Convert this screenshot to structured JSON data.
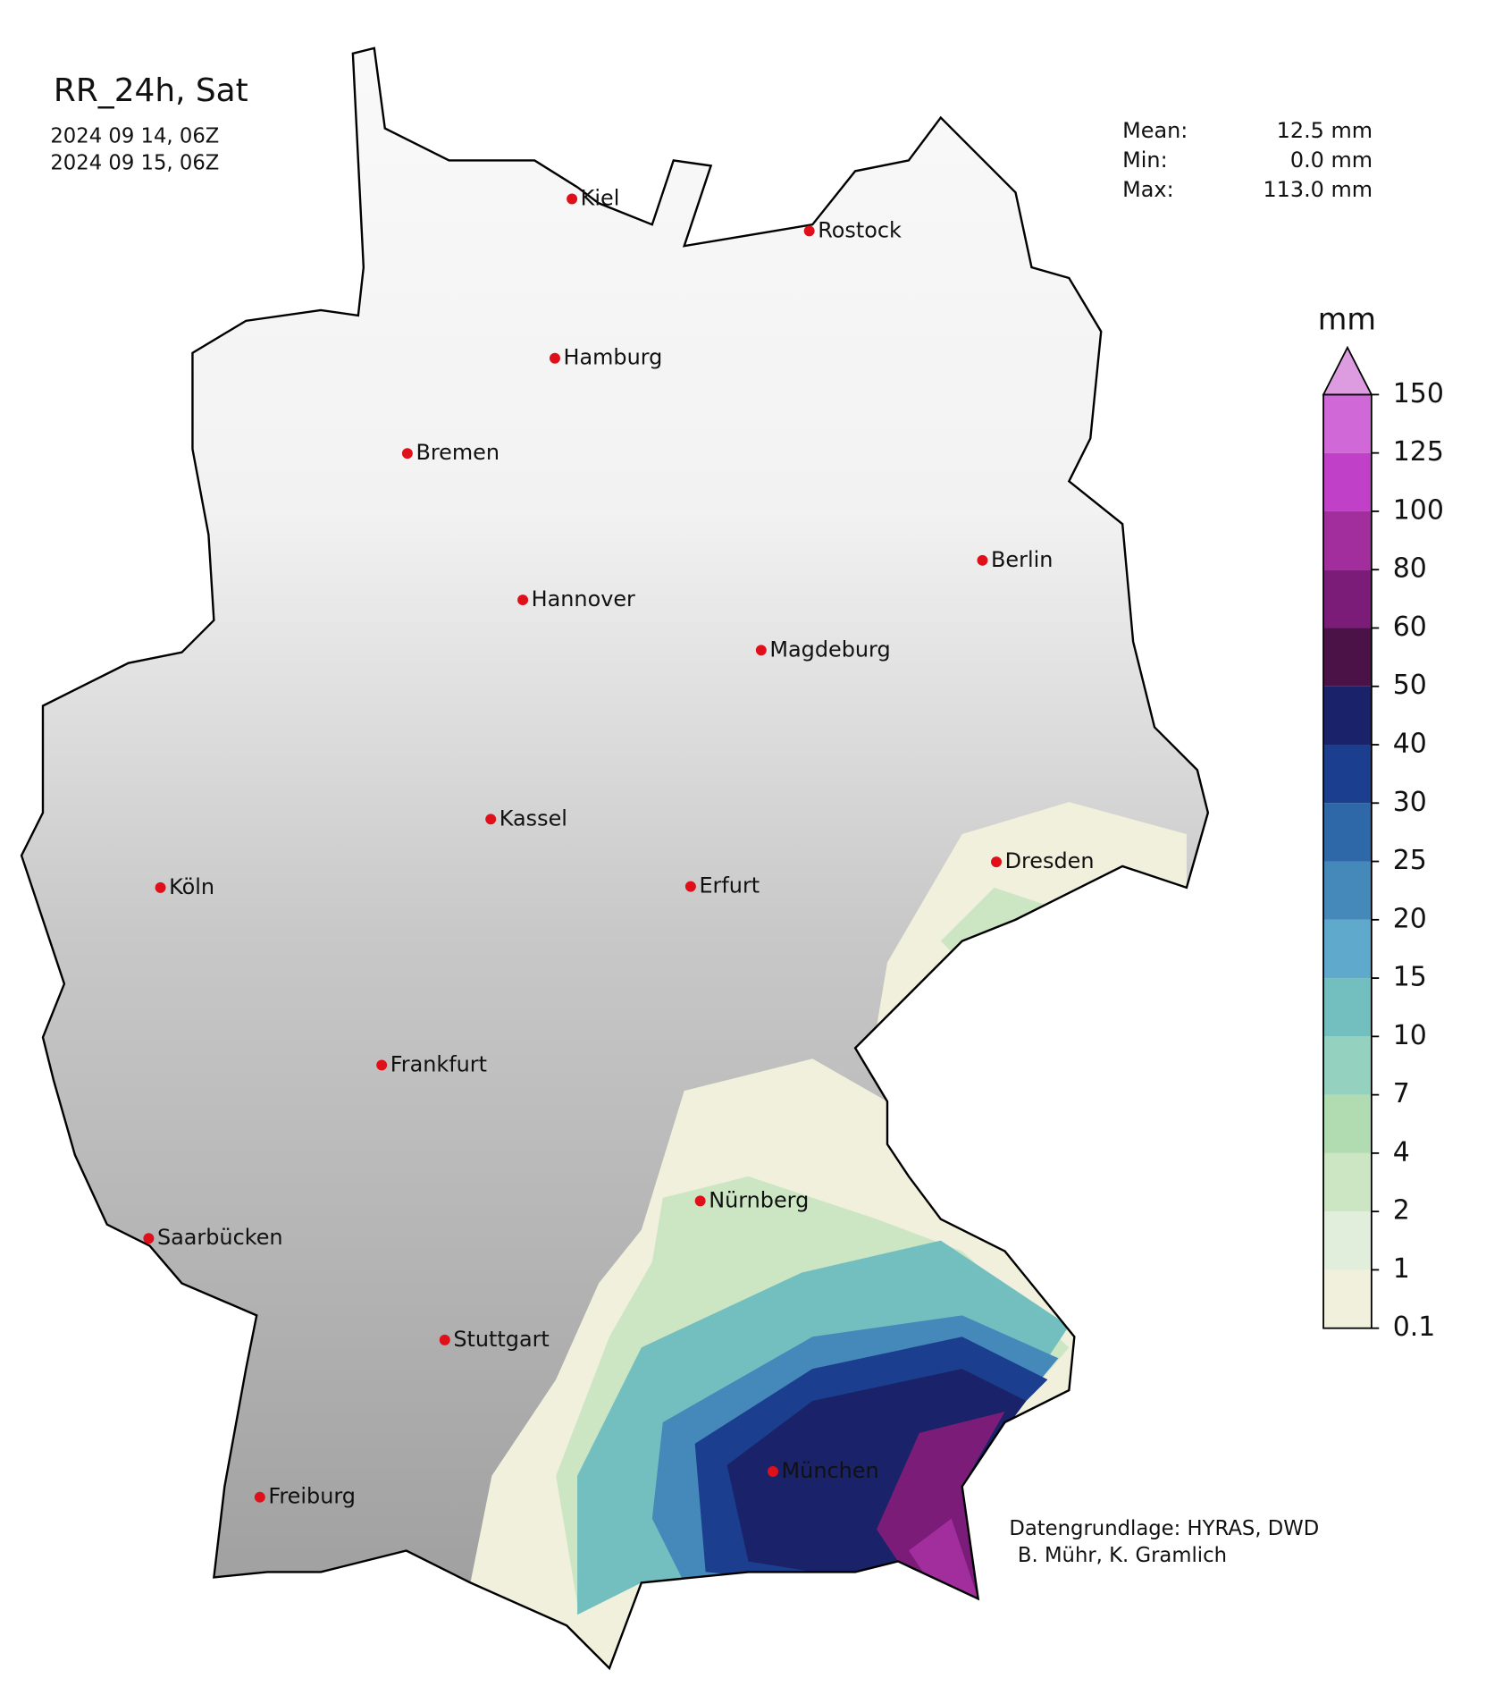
{
  "title": "RR_24h, Sat",
  "valid_from": "2024 09 14, 06Z",
  "valid_to": "2024 09 15, 06Z",
  "stats": [
    {
      "label": "Mean:",
      "value": "12.5 mm"
    },
    {
      "label": "Min:",
      "value": "0.0 mm"
    },
    {
      "label": "Max:",
      "value": "113.0 mm"
    }
  ],
  "cities": [
    "Kiel",
    "Rostock",
    "Hamburg",
    "Bremen",
    "Berlin",
    "Hannover",
    "Magdeburg",
    "Kassel",
    "Dresden",
    "Köln",
    "Erfurt",
    "Frankfurt",
    "Nürnberg",
    "Saarbücken",
    "Stuttgart",
    "München",
    "Freiburg"
  ],
  "colorbar": {
    "unit": "mm",
    "levels": [
      0.1,
      1,
      2,
      4,
      7,
      10,
      15,
      20,
      25,
      30,
      40,
      50,
      60,
      80,
      100,
      125,
      150
    ],
    "colors": [
      "#f0f0dc",
      "#e0eedb",
      "#cce6c4",
      "#b1dcb2",
      "#95d1bf",
      "#73bfc0",
      "#5fa9cc",
      "#4589bb",
      "#2f68a8",
      "#1b3f8e",
      "#1a2369",
      "#4b1248",
      "#7a1c78",
      "#a22e9d",
      "#c040c8",
      "#d168d8",
      "#dd9be0"
    ]
  },
  "credits": [
    "Datengrundlage: HYRAS, DWD",
    "B. Mühr, K. Gramlich"
  ]
}
